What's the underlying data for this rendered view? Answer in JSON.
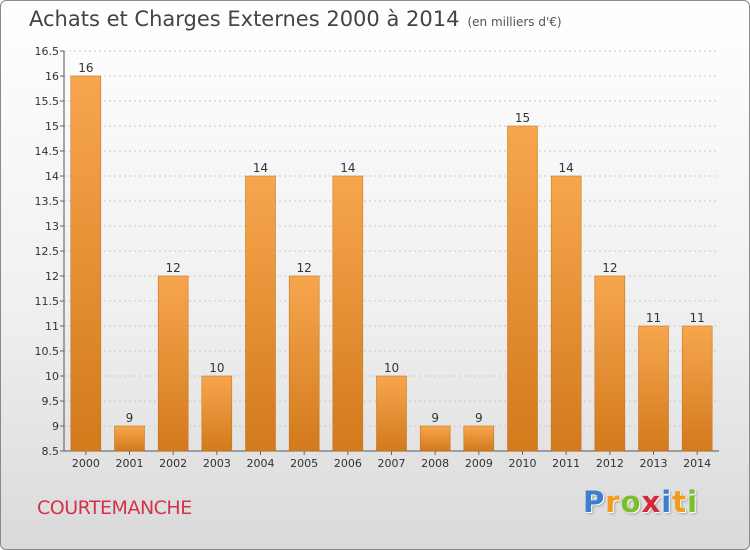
{
  "header": {
    "title": "Achats et Charges Externes 2000 à 2014",
    "subtitle": "(en milliers d'€)"
  },
  "commune": "COURTEMANCHE",
  "logo": {
    "text": "Proxiti",
    "letter_colors": [
      "#3a7fd1",
      "#f29a1c",
      "#7bbd2a",
      "#d6263b",
      "#3a7fd1",
      "#f29a1c",
      "#7bbd2a"
    ]
  },
  "colors": {
    "bar_top": "#f7a64e",
    "bar_bottom": "#d27a1c",
    "bar_edge": "#c06a12"
  },
  "chart_data": {
    "type": "bar",
    "title": "Achats et Charges Externes 2000 à 2014",
    "subtitle": "(en milliers d'€)",
    "categories": [
      "2000",
      "2001",
      "2002",
      "2003",
      "2004",
      "2005",
      "2006",
      "2007",
      "2008",
      "2009",
      "2010",
      "2011",
      "2012",
      "2013",
      "2014"
    ],
    "values": [
      16,
      9,
      12,
      10,
      14,
      12,
      14,
      10,
      9,
      9,
      15,
      14,
      12,
      11,
      11
    ],
    "value_labels": [
      "16",
      "9",
      "12",
      "10",
      "14",
      "12",
      "14",
      "10",
      "9",
      "9",
      "15",
      "14",
      "12",
      "11",
      "11"
    ],
    "yticks": [
      "8.5",
      "9",
      "9.5",
      "10",
      "10.5",
      "11",
      "11.5",
      "12",
      "12.5",
      "13",
      "13.5",
      "14",
      "14.5",
      "15",
      "15.5",
      "16",
      "16.5"
    ],
    "ylim": [
      8.5,
      16.5
    ],
    "grid": "horizontal dashed",
    "legend": "none"
  }
}
